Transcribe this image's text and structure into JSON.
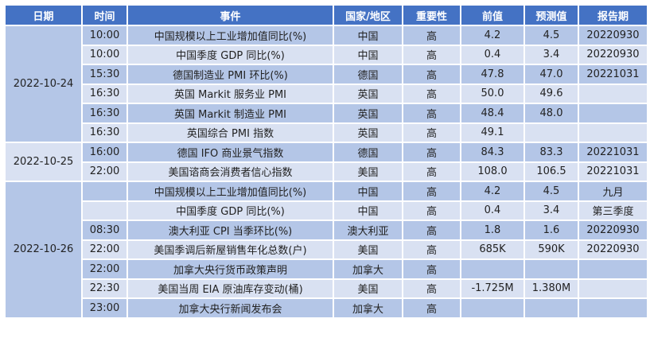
{
  "headers": [
    "日期",
    "时间",
    "事件",
    "国家/地区",
    "重要性",
    "前值",
    "预测值",
    "报告期"
  ],
  "groups": [
    {
      "date": "2022-10-24",
      "rows": [
        [
          "10:00",
          "中国规模以上工业增加值同比(%)",
          "中国",
          "高",
          "4.2",
          "4.5",
          "20220930"
        ],
        [
          "10:00",
          "中国季度 GDP 同比(%)",
          "中国",
          "高",
          "0.4",
          "3.4",
          "20220930"
        ],
        [
          "15:30",
          "德国制造业 PMI 环比(%)",
          "德国",
          "高",
          "47.8",
          "47.0",
          "20221031"
        ],
        [
          "16:30",
          "英国 Markit 服务业 PMI",
          "英国",
          "高",
          "50.0",
          "49.6",
          ""
        ],
        [
          "16:30",
          "英国 Markit 制造业 PMI",
          "英国",
          "高",
          "48.4",
          "48.0",
          ""
        ],
        [
          "16:30",
          "英国综合 PMI 指数",
          "英国",
          "高",
          "49.1",
          "",
          ""
        ]
      ]
    },
    {
      "date": "2022-10-25",
      "rows": [
        [
          "16:00",
          "德国 IFO 商业景气指数",
          "德国",
          "高",
          "84.3",
          "83.3",
          "20221031"
        ],
        [
          "22:00",
          "美国谘商会消费者信心指数",
          "美国",
          "高",
          "108.0",
          "106.5",
          "20221031"
        ]
      ]
    },
    {
      "date": "2022-10-26",
      "rows": [
        [
          "",
          "中国规模以上工业增加值同比(%)",
          "中国",
          "高",
          "4.2",
          "4.5",
          "九月"
        ],
        [
          "",
          "中国季度 GDP 同比(%)",
          "中国",
          "高",
          "0.4",
          "3.4",
          "第三季度"
        ],
        [
          "08:30",
          "澳大利亚 CPI 当季环比(%)",
          "澳大利亚",
          "高",
          "1.8",
          "1.6",
          "20220930"
        ],
        [
          "22:00",
          "美国季调后新屋销售年化总数(户)",
          "美国",
          "高",
          "685K",
          "590K",
          "20220930"
        ],
        [
          "22:00",
          "加拿大央行货币政策声明",
          "加拿大",
          "高",
          "",
          "",
          ""
        ],
        [
          "22:30",
          "美国当周 EIA 原油库存变动(桶)",
          "美国",
          "高",
          "-1.725M",
          "1.380M",
          ""
        ],
        [
          "23:00",
          "加拿大央行新闻发布会",
          "加拿大",
          "高",
          "",
          "",
          ""
        ]
      ]
    }
  ],
  "colors": {
    "header": "#4472C4",
    "row_dark": "#B4C6E7",
    "row_light": "#D9E1F2"
  }
}
